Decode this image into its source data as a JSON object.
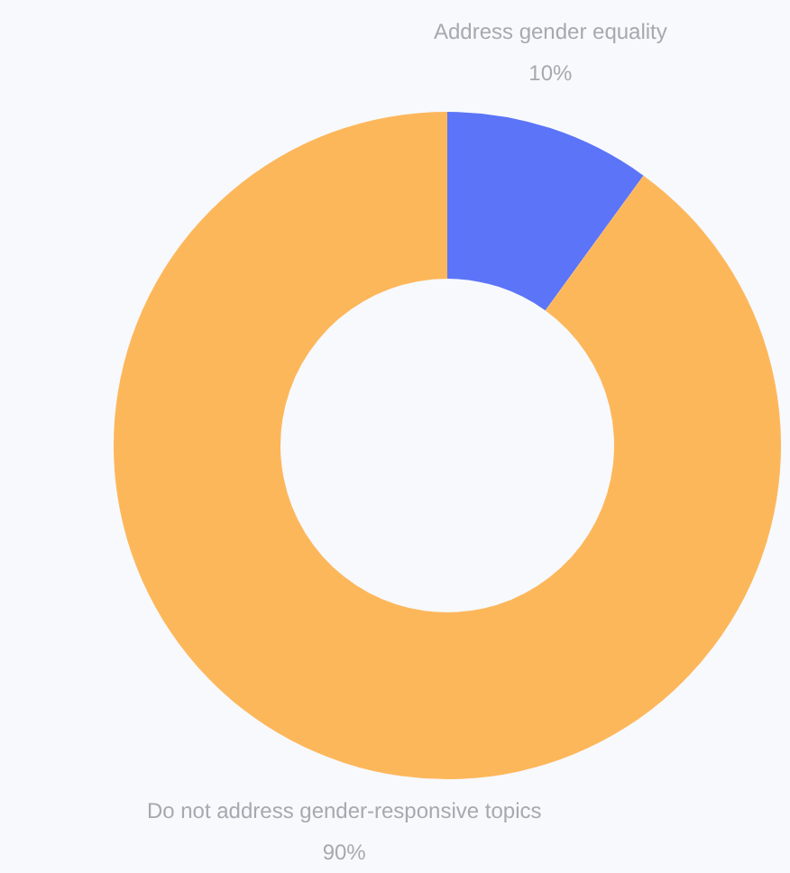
{
  "chart_data": {
    "type": "donut",
    "categories": [
      "Address gender equality",
      "Do not address gender-responsive topics"
    ],
    "values": [
      10,
      90
    ],
    "colors": [
      "#5b74f8",
      "#fdb75b"
    ],
    "value_labels": [
      "10%",
      "90%"
    ],
    "legend": false
  }
}
